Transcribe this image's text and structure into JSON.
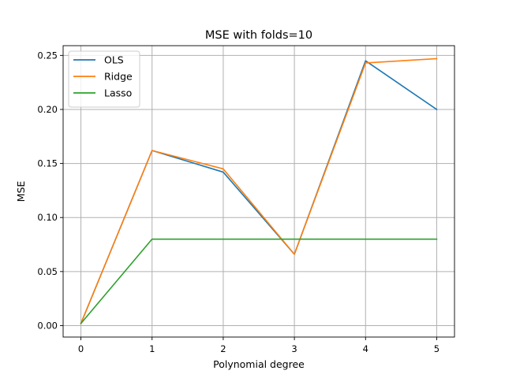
{
  "chart_data": {
    "type": "line",
    "title": "MSE with folds=10",
    "xlabel": "Polynomial degree",
    "ylabel": "MSE",
    "x": [
      0,
      1,
      2,
      3,
      4,
      5
    ],
    "xlim": [
      -0.25,
      5.25
    ],
    "ylim": [
      -0.0106,
      0.259
    ],
    "xticks": [
      0,
      1,
      2,
      3,
      4,
      5
    ],
    "xtick_labels": [
      "0",
      "1",
      "2",
      "3",
      "4",
      "5"
    ],
    "yticks": [
      0.0,
      0.05,
      0.1,
      0.15,
      0.2,
      0.25
    ],
    "ytick_labels": [
      "0.00",
      "0.05",
      "0.10",
      "0.15",
      "0.20",
      "0.25"
    ],
    "grid": true,
    "legend_position": "top-left",
    "series": [
      {
        "name": "OLS",
        "color": "#1f77b4",
        "values": [
          0.002,
          0.162,
          0.142,
          0.066,
          0.245,
          0.2
        ]
      },
      {
        "name": "Ridge",
        "color": "#ff7f0e",
        "values": [
          0.002,
          0.162,
          0.145,
          0.066,
          0.243,
          0.247
        ]
      },
      {
        "name": "Lasso",
        "color": "#2ca02c",
        "values": [
          0.002,
          0.08,
          0.08,
          0.08,
          0.08,
          0.08
        ]
      }
    ]
  }
}
